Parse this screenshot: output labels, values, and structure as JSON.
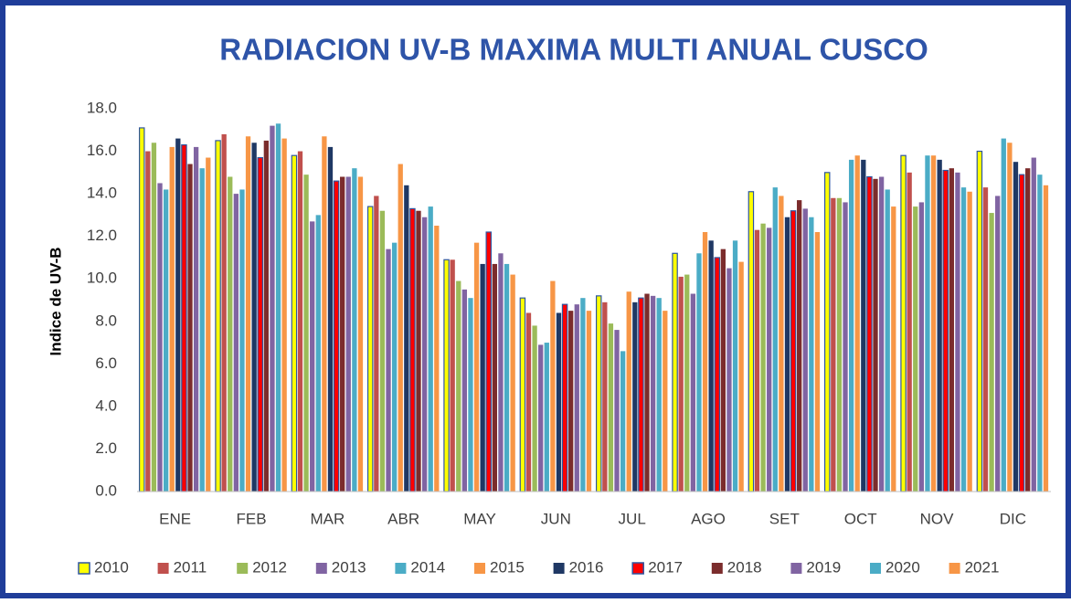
{
  "chart_data": {
    "type": "bar",
    "title": "RADIACION UV-B MAXIMA MULTI ANUAL CUSCO",
    "y_label": "Indice de UV-B",
    "categories": [
      "ENE",
      "FEB",
      "MAR",
      "ABR",
      "MAY",
      "JUN",
      "JUL",
      "AGO",
      "SET",
      "OCT",
      "NOV",
      "DIC"
    ],
    "ylim": [
      0,
      18
    ],
    "yticks": [
      {
        "value": 0,
        "label": "0.0"
      },
      {
        "value": 2,
        "label": "2.0"
      },
      {
        "value": 4,
        "label": "4.0"
      },
      {
        "value": 6,
        "label": "6.0"
      },
      {
        "value": 8,
        "label": "8.0"
      },
      {
        "value": 10,
        "label": "10.0"
      },
      {
        "value": 12,
        "label": "12.0"
      },
      {
        "value": 14,
        "label": "14.0"
      },
      {
        "value": 16,
        "label": "16.0"
      },
      {
        "value": 18,
        "label": "18.0"
      }
    ],
    "grid": false,
    "legend": "bottom",
    "series": [
      {
        "name": "2010",
        "color": "#ffff00",
        "border": "#2e55a0",
        "values": [
          17.1,
          16.5,
          15.8,
          13.4,
          10.9,
          9.1,
          9.2,
          11.2,
          14.1,
          15.0,
          15.8,
          16.0
        ]
      },
      {
        "name": "2011",
        "color": "#c0504d",
        "values": [
          16.0,
          16.8,
          16.0,
          13.9,
          10.9,
          8.4,
          8.9,
          10.1,
          12.3,
          13.8,
          15.0,
          14.3
        ]
      },
      {
        "name": "2012",
        "color": "#9bbb59",
        "values": [
          16.4,
          14.8,
          14.9,
          13.2,
          9.9,
          7.8,
          7.9,
          10.2,
          12.6,
          13.8,
          13.4,
          13.1
        ]
      },
      {
        "name": "2013",
        "color": "#8064a2",
        "values": [
          14.5,
          14.0,
          12.7,
          11.4,
          9.5,
          6.9,
          7.6,
          9.3,
          12.4,
          13.6,
          13.6,
          13.9
        ]
      },
      {
        "name": "2014",
        "color": "#4bacc6",
        "values": [
          14.2,
          14.2,
          13.0,
          11.7,
          9.1,
          7.0,
          6.6,
          11.2,
          14.3,
          15.6,
          15.8,
          16.6
        ]
      },
      {
        "name": "2015",
        "color": "#f79646",
        "values": [
          16.2,
          16.7,
          16.7,
          15.4,
          11.7,
          9.9,
          9.4,
          12.2,
          13.9,
          15.8,
          15.8,
          16.4
        ]
      },
      {
        "name": "2016",
        "color": "#1f3864",
        "values": [
          16.6,
          16.4,
          16.2,
          14.4,
          10.7,
          8.4,
          8.9,
          11.8,
          12.9,
          15.6,
          15.6,
          15.5
        ]
      },
      {
        "name": "2017",
        "color": "#ff0000",
        "border": "#2e55a0",
        "values": [
          16.3,
          15.7,
          14.6,
          13.3,
          12.2,
          8.8,
          9.1,
          11.0,
          13.2,
          14.8,
          15.1,
          14.9
        ]
      },
      {
        "name": "2018",
        "color": "#7b2c2c",
        "values": [
          15.4,
          16.5,
          14.8,
          13.2,
          10.7,
          8.5,
          9.3,
          11.4,
          13.7,
          14.7,
          15.2,
          15.2
        ]
      },
      {
        "name": "2019",
        "color": "#8064a2",
        "values": [
          16.2,
          17.2,
          14.8,
          12.9,
          11.2,
          8.8,
          9.2,
          10.5,
          13.3,
          14.8,
          15.0,
          15.7
        ]
      },
      {
        "name": "2020",
        "color": "#4bacc6",
        "values": [
          15.2,
          17.3,
          15.2,
          13.4,
          10.7,
          9.1,
          9.1,
          11.8,
          12.9,
          14.2,
          14.3,
          14.9
        ]
      },
      {
        "name": "2021",
        "color": "#f79646",
        "values": [
          15.7,
          16.6,
          14.8,
          12.5,
          10.2,
          8.5,
          8.5,
          10.8,
          12.2,
          13.4,
          14.1,
          14.4
        ]
      }
    ]
  }
}
